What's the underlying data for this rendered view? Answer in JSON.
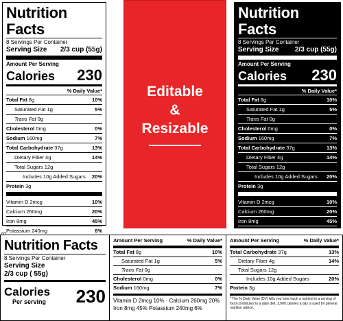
{
  "label": {
    "title": "Nutrition Facts",
    "servings": "8 Servings Per Container",
    "serving_size_label": "Serving Size",
    "serving_size_value": "2/3 cup (55g)",
    "amount_per_serving": "Amount Per Serving",
    "calories_label": "Calories",
    "calories_value": "230",
    "daily_value_header": "% Daily Value*",
    "rows": [
      {
        "name": "Total Fat",
        "amount": "8g",
        "dv": "10%",
        "bold": true,
        "indent": 0
      },
      {
        "name": "Saturated Fat",
        "amount": "1g",
        "dv": "5%",
        "bold": false,
        "indent": 1
      },
      {
        "name": "Trans Fat",
        "amount": "0g",
        "dv": "",
        "bold": false,
        "indent": 1,
        "italic": true
      },
      {
        "name": "Cholesterol",
        "amount": "0mg",
        "dv": "0%",
        "bold": true,
        "indent": 0
      },
      {
        "name": "Sodium",
        "amount": "160mg",
        "dv": "7%",
        "bold": true,
        "indent": 0
      },
      {
        "name": "Total Carbohydrate",
        "amount": "37g",
        "dv": "13%",
        "bold": true,
        "indent": 0
      },
      {
        "name": "Dietary Fiber",
        "amount": "4g",
        "dv": "14%",
        "bold": false,
        "indent": 1
      },
      {
        "name": "Total Sugars",
        "amount": "12g",
        "dv": "",
        "bold": false,
        "indent": 1
      },
      {
        "name": "Includes 10g Added Sugars",
        "amount": "",
        "dv": "20%",
        "bold": false,
        "indent": 2
      },
      {
        "name": "Protein",
        "amount": "3g",
        "dv": "",
        "bold": true,
        "indent": 0
      }
    ],
    "vitamins": [
      {
        "name": "Vitamin D",
        "amount": "2mcg",
        "dv": "10%"
      },
      {
        "name": "Calcium",
        "amount": "260mg",
        "dv": "20%"
      },
      {
        "name": "Iron",
        "amount": "8mg",
        "dv": "45%"
      },
      {
        "name": "Potassium",
        "amount": "240mg",
        "dv": "6%"
      }
    ],
    "footnote": "* The % Daily Value (DV) tells you how much a nutrient in a serving of food contributes to a daily diet. 2,000 calories a day is used for general nutrition advice."
  },
  "center": {
    "line1": "Editable",
    "line2": "&",
    "line3": "Resizable"
  },
  "horizontal": {
    "calories_label": "Calories",
    "per_serving": "Per serving",
    "serving_size_value": "2/3 cup ( 55g)",
    "amount_per_serving": "Amount Per Serving",
    "daily_value_header": "% Daily Value*",
    "vit_line1": "Vitamin D 2mcg 10% · Calcium 260mg 20%",
    "vit_line2": "Iron 8mg 45%      Potassium 240mg 6%"
  },
  "stock_id": "496585498",
  "colors": {
    "accent": "#e8262a",
    "dark": "#000000",
    "light": "#ffffff"
  }
}
